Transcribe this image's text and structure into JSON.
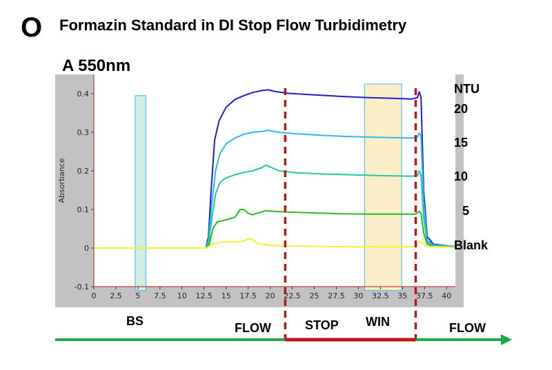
{
  "slide": {
    "letter": "O",
    "title": "Formazin Standard in DI Stop Flow Turbidimetry"
  },
  "chart_data": {
    "type": "line",
    "title": "A 550nm",
    "xlabel": "",
    "ylabel": "Absorbance",
    "xlim": [
      0,
      41
    ],
    "ylim": [
      -0.1,
      0.45
    ],
    "x_ticks": [
      "0",
      "2.5",
      "5",
      "7.5",
      "10",
      "12.5",
      "15",
      "17.5",
      "20",
      "22.5",
      "25",
      "27.5",
      "30",
      "32.5",
      "35",
      "37.5",
      "40"
    ],
    "y_ticks": [
      "-0.1",
      "0",
      "0.1",
      "0.2",
      "0.3",
      "0.4"
    ],
    "legend_title": "NTU",
    "grid": false,
    "series": [
      {
        "name": "20",
        "color": "#1a1ad6",
        "points": [
          [
            0,
            0
          ],
          [
            12.7,
            0
          ],
          [
            13.0,
            0.03
          ],
          [
            13.3,
            0.15
          ],
          [
            13.7,
            0.28
          ],
          [
            14.2,
            0.33
          ],
          [
            15,
            0.365
          ],
          [
            16,
            0.385
          ],
          [
            17,
            0.395
          ],
          [
            18,
            0.403
          ],
          [
            19,
            0.408
          ],
          [
            19.8,
            0.41
          ],
          [
            20.5,
            0.406
          ],
          [
            22,
            0.401
          ],
          [
            25,
            0.397
          ],
          [
            28,
            0.393
          ],
          [
            31,
            0.39
          ],
          [
            34,
            0.388
          ],
          [
            36,
            0.386
          ],
          [
            36.7,
            0.39
          ],
          [
            36.9,
            0.405
          ],
          [
            37.1,
            0.39
          ],
          [
            37.4,
            0.15
          ],
          [
            37.8,
            0.03
          ],
          [
            38.5,
            0.01
          ],
          [
            40,
            0.006
          ],
          [
            41,
            0.004
          ]
        ]
      },
      {
        "name": "15",
        "color": "#2ab8ee",
        "points": [
          [
            0,
            0
          ],
          [
            12.7,
            0
          ],
          [
            13.0,
            0.02
          ],
          [
            13.4,
            0.12
          ],
          [
            13.8,
            0.2
          ],
          [
            14.3,
            0.245
          ],
          [
            15,
            0.27
          ],
          [
            16,
            0.285
          ],
          [
            17,
            0.295
          ],
          [
            18,
            0.3
          ],
          [
            19,
            0.302
          ],
          [
            19.8,
            0.305
          ],
          [
            21,
            0.3
          ],
          [
            23,
            0.296
          ],
          [
            26,
            0.292
          ],
          [
            29,
            0.289
          ],
          [
            32,
            0.287
          ],
          [
            36,
            0.285
          ],
          [
            36.7,
            0.287
          ],
          [
            36.9,
            0.298
          ],
          [
            37.1,
            0.29
          ],
          [
            37.4,
            0.12
          ],
          [
            37.8,
            0.02
          ],
          [
            38.5,
            0.008
          ],
          [
            41,
            0.004
          ]
        ]
      },
      {
        "name": "10",
        "color": "#1ec9a6",
        "points": [
          [
            0,
            0
          ],
          [
            12.7,
            0
          ],
          [
            13.0,
            0.01
          ],
          [
            13.4,
            0.08
          ],
          [
            13.8,
            0.14
          ],
          [
            14.3,
            0.17
          ],
          [
            15,
            0.182
          ],
          [
            16,
            0.19
          ],
          [
            17,
            0.196
          ],
          [
            18,
            0.2
          ],
          [
            19,
            0.208
          ],
          [
            19.5,
            0.215
          ],
          [
            20,
            0.21
          ],
          [
            21,
            0.2
          ],
          [
            23,
            0.195
          ],
          [
            26,
            0.192
          ],
          [
            29,
            0.19
          ],
          [
            32,
            0.188
          ],
          [
            36,
            0.186
          ],
          [
            36.7,
            0.188
          ],
          [
            36.9,
            0.2
          ],
          [
            37.1,
            0.19
          ],
          [
            37.4,
            0.08
          ],
          [
            37.8,
            0.015
          ],
          [
            38.5,
            0.006
          ],
          [
            41,
            0.003
          ]
        ]
      },
      {
        "name": "5",
        "color": "#22c01a",
        "points": [
          [
            0,
            0
          ],
          [
            12.7,
            0
          ],
          [
            13.1,
            0.01
          ],
          [
            13.5,
            0.05
          ],
          [
            14,
            0.068
          ],
          [
            15,
            0.073
          ],
          [
            16,
            0.08
          ],
          [
            16.6,
            0.1
          ],
          [
            17,
            0.1
          ],
          [
            17.5,
            0.09
          ],
          [
            18,
            0.086
          ],
          [
            18.5,
            0.09
          ],
          [
            19.5,
            0.097
          ],
          [
            20.5,
            0.095
          ],
          [
            22,
            0.093
          ],
          [
            25,
            0.091
          ],
          [
            28,
            0.089
          ],
          [
            31,
            0.088
          ],
          [
            34,
            0.088
          ],
          [
            36.5,
            0.088
          ],
          [
            36.9,
            0.095
          ],
          [
            37.1,
            0.09
          ],
          [
            37.4,
            0.04
          ],
          [
            37.8,
            0.01
          ],
          [
            38.5,
            0.004
          ],
          [
            41,
            0.002
          ]
        ]
      },
      {
        "name": "Blank",
        "color": "#f3f32a",
        "points": [
          [
            0,
            0
          ],
          [
            12.7,
            0
          ],
          [
            13.2,
            0.005
          ],
          [
            13.6,
            0.012
          ],
          [
            14.5,
            0.015
          ],
          [
            16,
            0.016
          ],
          [
            17,
            0.018
          ],
          [
            17.6,
            0.025
          ],
          [
            18,
            0.022
          ],
          [
            18.5,
            0.012
          ],
          [
            20,
            0.007
          ],
          [
            23,
            0.005
          ],
          [
            26,
            0.004
          ],
          [
            30,
            0.003
          ],
          [
            34,
            0.003
          ],
          [
            36.5,
            0.003
          ],
          [
            37.0,
            0.018
          ],
          [
            37.3,
            0.01
          ],
          [
            37.8,
            0.004
          ],
          [
            41,
            0.002
          ]
        ]
      }
    ],
    "ntu_labels": [
      "NTU",
      "20",
      "15",
      "10",
      "5",
      "Blank"
    ],
    "regions": [
      {
        "name": "BS",
        "x_range": [
          4.7,
          5.9
        ],
        "fill": "#cfeee4",
        "stroke": "#2ab8ee"
      },
      {
        "name": "WIN",
        "x_range": [
          30.7,
          34.9
        ],
        "fill": "#fcefc6",
        "stroke": "#2ab8ee"
      }
    ],
    "stop_markers": {
      "x": [
        21.7,
        36.5
      ],
      "color": "#b51a1a"
    },
    "phases": {
      "bs": "BS",
      "flow1": "FLOW",
      "stop": "STOP",
      "win": "WIN",
      "flow2": "FLOW"
    },
    "colors": {
      "plot_background": "#ffffff",
      "frame_background": "#c2c2c2",
      "axis_line": "#b51a1a",
      "flow_arrow": "#1eaa46",
      "stop_bar": "#c21414"
    }
  }
}
